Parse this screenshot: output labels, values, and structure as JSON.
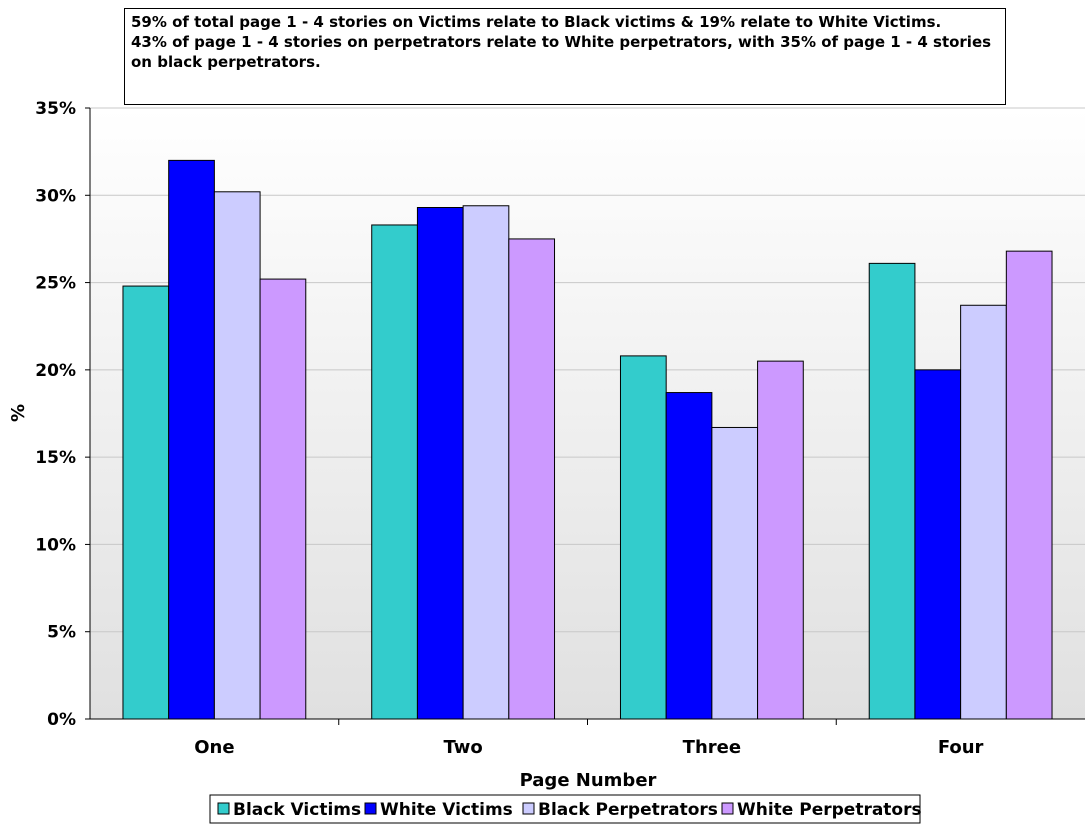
{
  "annotation": {
    "lines": [
      "59% of total page 1 - 4 stories on Victims relate to Black victims & 19% relate to White Victims.",
      "43% of page 1 - 4 stories on perpetrators relate to White perpetrators, with 35% of page 1 - 4 stories",
      "on black perpetrators."
    ]
  },
  "chart_data": {
    "type": "bar",
    "title": "",
    "xlabel": "Page Number",
    "ylabel": "%",
    "ylim": [
      0,
      35
    ],
    "yticks": [
      "0%",
      "5%",
      "10%",
      "15%",
      "20%",
      "25%",
      "30%",
      "35%"
    ],
    "categories": [
      "One",
      "Two",
      "Three",
      "Four"
    ],
    "series": [
      {
        "name": "Black Victims",
        "color": "#33cccc",
        "values": [
          24.8,
          28.3,
          20.8,
          26.1
        ]
      },
      {
        "name": "White Victims",
        "color": "#0000ff",
        "values": [
          32.0,
          29.3,
          18.7,
          20.0
        ]
      },
      {
        "name": "Black Perpetrators",
        "color": "#ccccff",
        "values": [
          30.2,
          29.4,
          16.7,
          23.7
        ]
      },
      {
        "name": "White Perpetrators",
        "color": "#cc99ff",
        "values": [
          25.2,
          27.5,
          20.5,
          26.8
        ]
      }
    ],
    "grid": true,
    "legend_position": "bottom"
  }
}
